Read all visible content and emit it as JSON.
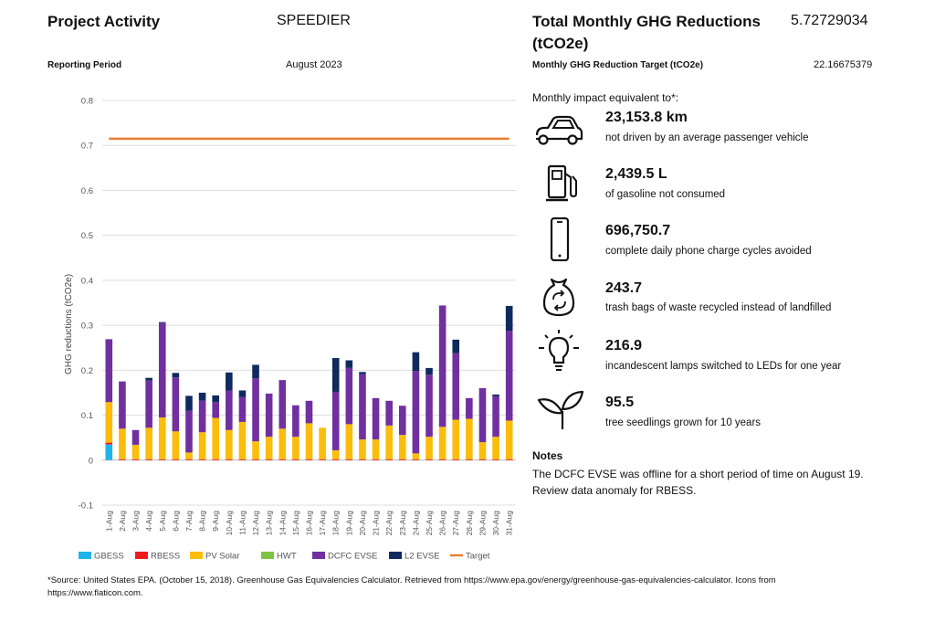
{
  "header": {
    "project_activity_label": "Project Activity",
    "project_name": "SPEEDIER",
    "reporting_period_label": "Reporting Period",
    "reporting_period": "August 2023"
  },
  "summary": {
    "total_label": "Total Monthly GHG Reductions",
    "total_unit": "(tCO2e)",
    "total_value": "5.72729034",
    "target_label": "Monthly GHG Reduction Target (tCO2e)",
    "target_value": "22.16675379"
  },
  "impact": {
    "heading": "Monthly impact equivalent to*:",
    "items": [
      {
        "icon": "car-icon",
        "value": "23,153.8 km",
        "desc": "not driven by an average passenger vehicle"
      },
      {
        "icon": "fuel-pump-icon",
        "value": "2,439.5 L",
        "desc": "of gasoline not consumed"
      },
      {
        "icon": "phone-icon",
        "value": "696,750.7",
        "desc": "complete daily phone charge cycles avoided"
      },
      {
        "icon": "recycle-bag-icon",
        "value": "243.7",
        "desc": "trash bags of waste recycled instead of landfilled"
      },
      {
        "icon": "lightbulb-icon",
        "value": "216.9",
        "desc": "incandescent lamps switched to LEDs for one year"
      },
      {
        "icon": "seedling-icon",
        "value": "95.5",
        "desc": "tree seedlings grown for 10 years"
      }
    ]
  },
  "notes": {
    "heading": "Notes",
    "line1": "The DCFC EVSE was offline for a short period of time on August 19.",
    "line2": "Review data anomaly for RBESS."
  },
  "footer": {
    "source_line1": "*Source: United States EPA. (October 15, 2018). Greenhouse Gas Equivalencies Calculator. Retrieved from https://www.epa.gov/energy/greenhouse-gas-equivalencies-calculator. Icons from",
    "source_line2": "https://www.flaticon.com."
  },
  "chart_data": {
    "type": "bar",
    "stacked": true,
    "ylabel": "GHG reductions (tCO2e)",
    "ylim": [
      -0.1,
      0.8
    ],
    "yticks": [
      -0.1,
      0,
      0.1,
      0.2,
      0.3,
      0.4,
      0.5,
      0.6,
      0.7,
      0.8
    ],
    "ytick_labels": [
      "-0.1",
      "0",
      "0.1",
      "0.2",
      "0.3",
      "0.4",
      "0.5",
      "0.6",
      "0.7",
      "0.8"
    ],
    "grid": true,
    "legend_position": "bottom",
    "categories": [
      "1-Aug",
      "2-Aug",
      "3-Aug",
      "4-Aug",
      "5-Aug",
      "6-Aug",
      "7-Aug",
      "8-Aug",
      "9-Aug",
      "10-Aug",
      "11-Aug",
      "12-Aug",
      "13-Aug",
      "14-Aug",
      "15-Aug",
      "16-Aug",
      "17-Aug",
      "18-Aug",
      "19-Aug",
      "20-Aug",
      "21-Aug",
      "22-Aug",
      "23-Aug",
      "24-Aug",
      "25-Aug",
      "26-Aug",
      "27-Aug",
      "28-Aug",
      "29-Aug",
      "30-Aug",
      "31-Aug"
    ],
    "series": [
      {
        "name": "GBESS",
        "color": "#1fb5ea",
        "values": [
          0.035,
          0,
          0,
          0,
          0,
          0,
          0,
          0,
          0,
          0,
          0,
          0,
          0,
          0,
          0,
          0,
          0,
          0,
          0,
          0,
          0,
          0,
          0,
          0,
          0,
          0,
          0,
          0,
          0,
          0,
          0
        ]
      },
      {
        "name": "RBESS",
        "color": "#ee1c1c",
        "values": [
          0.004,
          0.002,
          0.002,
          0.002,
          0.002,
          0.002,
          0.002,
          0.002,
          0.002,
          0.002,
          0.002,
          0.002,
          0.002,
          0.002,
          0.002,
          0.002,
          0.002,
          0.002,
          0.002,
          0.002,
          0.002,
          0.002,
          0.002,
          0.002,
          0.002,
          0.002,
          0.002,
          0.002,
          0.002,
          0.002,
          0.002
        ]
      },
      {
        "name": "PV Solar",
        "color": "#fbbc0a",
        "values": [
          0.09,
          0.068,
          0.032,
          0.07,
          0.093,
          0.062,
          0.015,
          0.06,
          0.092,
          0.065,
          0.083,
          0.04,
          0.05,
          0.068,
          0.05,
          0.08,
          0.07,
          0.02,
          0.078,
          0.044,
          0.044,
          0.075,
          0.054,
          0.013,
          0.05,
          0.072,
          0.088,
          0.09,
          0.038,
          0.05,
          0.086
        ]
      },
      {
        "name": "HWT",
        "color": "#80c342",
        "values": [
          0,
          0,
          0,
          0,
          0,
          0,
          0,
          0,
          0,
          0,
          0,
          0,
          0,
          0,
          0,
          0,
          0,
          0,
          0,
          0,
          0,
          0,
          0,
          0,
          0,
          0,
          0,
          0,
          0,
          0,
          0
        ]
      },
      {
        "name": "DCFC EVSE",
        "color": "#7030a0",
        "values": [
          0.14,
          0.105,
          0.033,
          0.105,
          0.21,
          0.12,
          0.093,
          0.07,
          0.035,
          0.088,
          0.055,
          0.14,
          0.096,
          0.108,
          0.07,
          0.05,
          0,
          0.13,
          0.125,
          0.145,
          0.092,
          0.055,
          0.065,
          0.183,
          0.138,
          0.27,
          0.148,
          0.046,
          0.12,
          0.09,
          0.2
        ]
      },
      {
        "name": "L2 EVSE",
        "color": "#0f2a5c",
        "values": [
          0,
          0,
          0,
          0.006,
          0.002,
          0.01,
          0.033,
          0.018,
          0.015,
          0.04,
          0.015,
          0.03,
          0,
          0,
          0,
          0,
          0,
          0.075,
          0.017,
          0.005,
          0,
          0,
          0,
          0.042,
          0.015,
          0,
          0.03,
          0,
          0,
          0.004,
          0.055
        ]
      },
      {
        "name": "Target",
        "color": "#ed7d31",
        "type": "line",
        "values": [
          0.715,
          0.715,
          0.715,
          0.715,
          0.715,
          0.715,
          0.715,
          0.715,
          0.715,
          0.715,
          0.715,
          0.715,
          0.715,
          0.715,
          0.715,
          0.715,
          0.715,
          0.715,
          0.715,
          0.715,
          0.715,
          0.715,
          0.715,
          0.715,
          0.715,
          0.715,
          0.715,
          0.715,
          0.715,
          0.715,
          0.715
        ]
      }
    ]
  }
}
